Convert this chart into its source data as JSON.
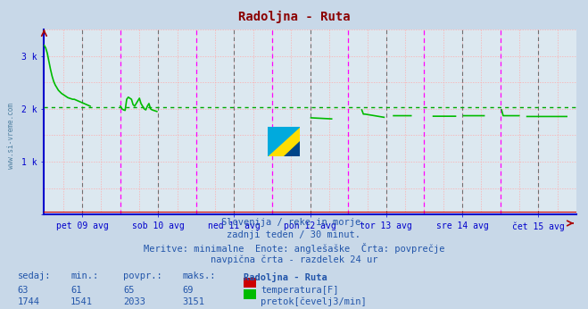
{
  "title": "Radoljna - Ruta",
  "title_color": "#8b0000",
  "bg_color": "#c8d8e8",
  "plot_bg_color": "#dce8f0",
  "xlabel_labels": [
    "pet 09 avg",
    "sob 10 avg",
    "ned 11 avg",
    "pon 12 avg",
    "tor 13 avg",
    "sre 14 avg",
    "čet 15 avg"
  ],
  "ylim": [
    0,
    3500
  ],
  "flow_avg": 2033,
  "flow_color": "#00bb00",
  "temp_color": "#cc0000",
  "avg_line_color": "#00aa00",
  "vline_day_color": "#ff00ff",
  "vline_subday_color": "#555555",
  "axis_color": "#0000cc",
  "bottom_text1": "Slovenija / reke in morje.",
  "bottom_text2": "zadnji teden / 30 minut.",
  "bottom_text3": "Meritve: minimalne  Enote: anglešaške  Črta: povprečje",
  "bottom_text4": "navpična črta - razdelek 24 ur",
  "temp_row": [
    "63",
    "61",
    "65",
    "69"
  ],
  "flow_row": [
    "1744",
    "1541",
    "2033",
    "3151"
  ],
  "temp_label": "temperatura[F]",
  "flow_label": "pretok[čevelj3/min]",
  "sidebar_color": "#5080a0",
  "table_header_color": "#2255aa",
  "table_data_color": "#2255aa"
}
